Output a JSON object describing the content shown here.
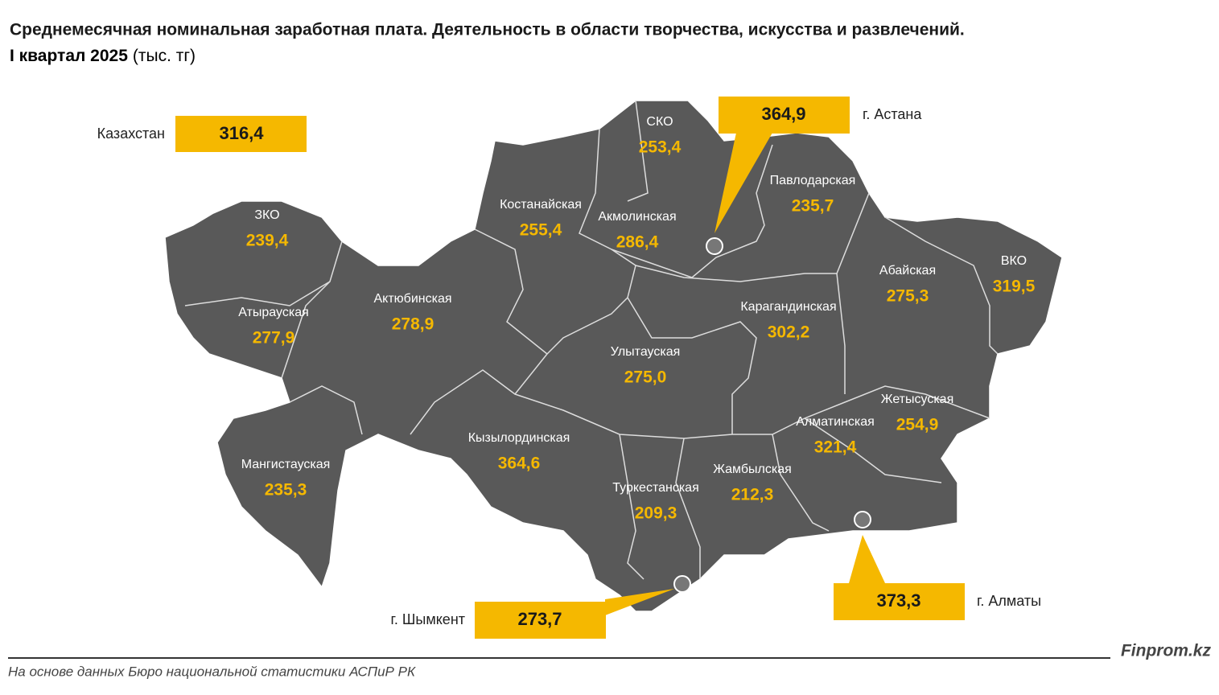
{
  "header": {
    "title": "Среднемесячная номинальная заработная плата. Деятельность в области творчества, искусства и развлечений.",
    "period": "I квартал 2025",
    "unit": "(тыс. тг)"
  },
  "national": {
    "label": "Казахстан",
    "value": "316,4"
  },
  "cities": [
    {
      "label": "г. Астана",
      "value": "364,9"
    },
    {
      "label": "г. Алматы",
      "value": "373,3"
    },
    {
      "label": "г. Шымкент",
      "value": "273,7"
    }
  ],
  "regions": [
    {
      "name": "СКО",
      "value": "253,4"
    },
    {
      "name": "Павлодарская",
      "value": "235,7"
    },
    {
      "name": "Костанайская",
      "value": "255,4"
    },
    {
      "name": "Акмолинская",
      "value": "286,4"
    },
    {
      "name": "ЗКО",
      "value": "239,4"
    },
    {
      "name": "Абайская",
      "value": "275,3"
    },
    {
      "name": "ВКО",
      "value": "319,5"
    },
    {
      "name": "Атырауская",
      "value": "277,9"
    },
    {
      "name": "Актюбинская",
      "value": "278,9"
    },
    {
      "name": "Карагандинская",
      "value": "302,2"
    },
    {
      "name": "Улытауская",
      "value": "275,0"
    },
    {
      "name": "Жетысуская",
      "value": "254,9"
    },
    {
      "name": "Алматинская",
      "value": "321,4"
    },
    {
      "name": "Кызылординская",
      "value": "364,6"
    },
    {
      "name": "Мангистауская",
      "value": "235,3"
    },
    {
      "name": "Жамбылская",
      "value": "212,3"
    },
    {
      "name": "Туркестанская",
      "value": "209,3"
    }
  ],
  "footer": {
    "source": "На основе данных Бюро национальной статистики АСПиР РК",
    "brand": "Finprom.kz"
  }
}
